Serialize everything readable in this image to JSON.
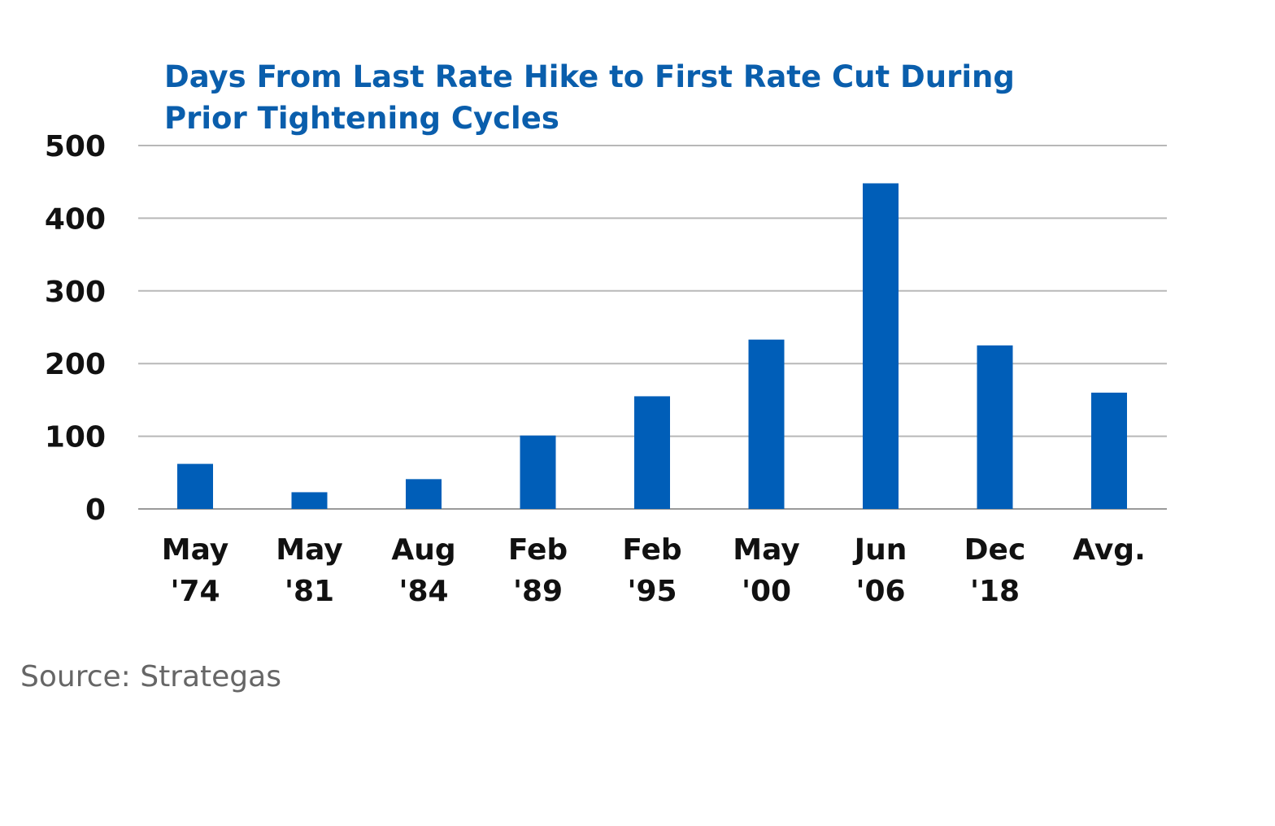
{
  "chart_data": {
    "type": "bar",
    "title_lines": [
      "Days From Last Rate Hike to First Rate Cut During",
      "Prior Tightening Cycles"
    ],
    "categories": [
      [
        "May",
        "'74"
      ],
      [
        "May",
        "'81"
      ],
      [
        "Aug",
        "'84"
      ],
      [
        "Feb",
        "'89"
      ],
      [
        "Feb",
        "'95"
      ],
      [
        "May",
        "'00"
      ],
      [
        "Jun",
        "'06"
      ],
      [
        "Dec",
        "'18"
      ],
      [
        "Avg."
      ]
    ],
    "values": [
      62,
      23,
      41,
      101,
      155,
      233,
      448,
      225,
      160
    ],
    "yticks": [
      0,
      100,
      200,
      300,
      400,
      500
    ],
    "ylim": [
      0,
      500
    ],
    "xlabel": "",
    "ylabel": "",
    "grid": true,
    "legend": "none",
    "bar_color": "#005eb8"
  },
  "source": "Source: Strategas"
}
